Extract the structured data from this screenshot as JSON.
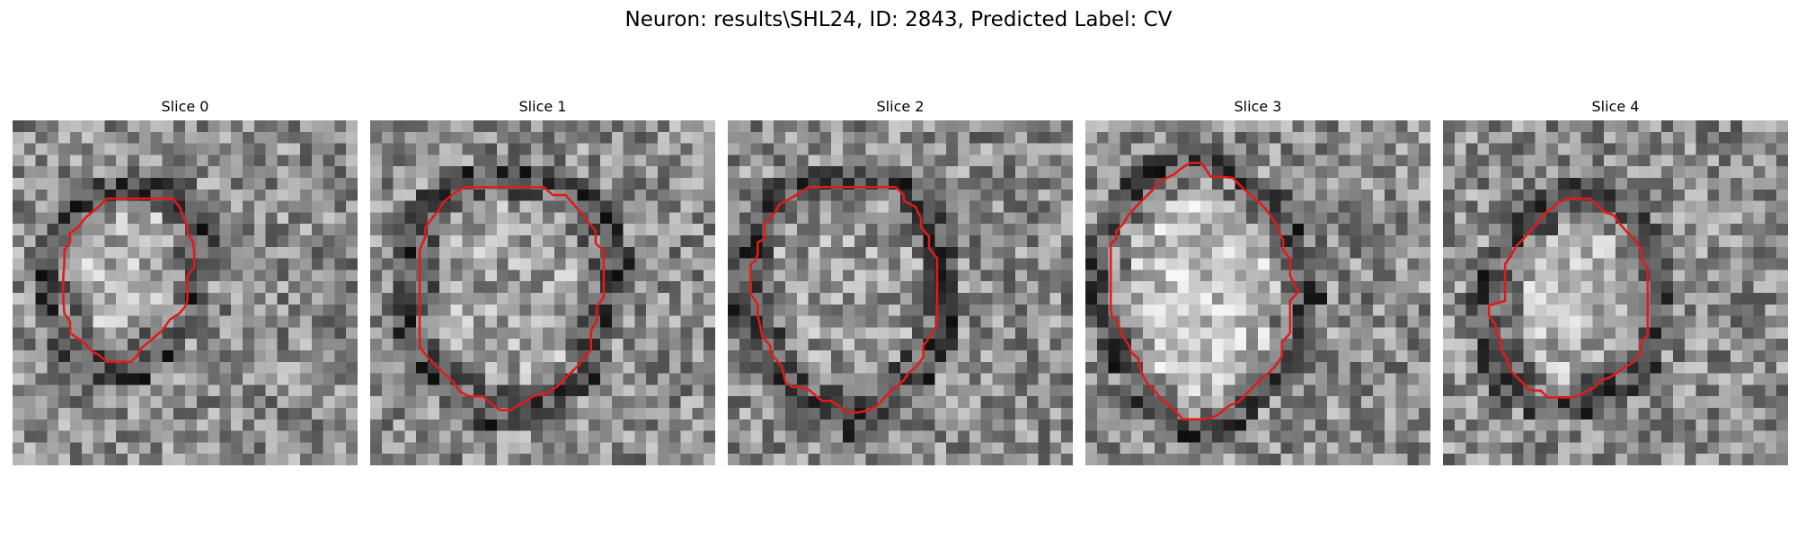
{
  "figure": {
    "title": "Neuron: results\\SHL24, ID: 2843, Predicted Label: CV"
  },
  "contour_color": "#e01b1b",
  "image_grid": {
    "rows": 30,
    "cols": 30,
    "colormap": "gray"
  },
  "slices": [
    {
      "title": "Slice 0",
      "contour": [
        [
          14,
          6.8
        ],
        [
          13.9,
          6.8
        ],
        [
          14.5,
          7.5
        ],
        [
          15.2,
          9.2
        ],
        [
          15.2,
          9.8
        ],
        [
          15.7,
          10.6
        ],
        [
          15.8,
          11.6
        ],
        [
          15.8,
          12.8
        ],
        [
          15.2,
          13.5
        ],
        [
          15.2,
          15.7
        ],
        [
          15.0,
          16.2
        ],
        [
          14.5,
          16.8
        ],
        [
          13.7,
          17.3
        ],
        [
          13.0,
          18.3
        ],
        [
          12.5,
          18.7
        ],
        [
          11.7,
          19.4
        ],
        [
          11.1,
          19.9
        ],
        [
          10.9,
          20.4
        ],
        [
          10.3,
          21.0
        ],
        [
          9.3,
          21.0
        ],
        [
          8.2,
          21.0
        ],
        [
          7.5,
          20.4
        ],
        [
          6.9,
          20.1
        ],
        [
          6.3,
          19.4
        ],
        [
          5.6,
          18.9
        ],
        [
          5.0,
          18.5
        ],
        [
          5.0,
          17.5
        ],
        [
          4.5,
          16.8
        ],
        [
          4.4,
          15.4
        ],
        [
          4.4,
          13.8
        ],
        [
          4.5,
          12.4
        ],
        [
          4.5,
          11.3
        ],
        [
          5.0,
          10.6
        ],
        [
          5.0,
          9.8
        ],
        [
          5.7,
          9.3
        ],
        [
          6.3,
          8.5
        ],
        [
          6.9,
          8.0
        ],
        [
          7.5,
          7.5
        ],
        [
          8.2,
          6.8
        ],
        [
          9.5,
          6.8
        ],
        [
          11.0,
          6.8
        ],
        [
          12.3,
          6.8
        ],
        [
          13.3,
          6.8
        ]
      ],
      "tone": 0.62
    },
    {
      "title": "Slice 1",
      "contour": [
        [
          9.2,
          5.8
        ],
        [
          10.4,
          5.8
        ],
        [
          11.9,
          5.8
        ],
        [
          13.2,
          5.8
        ],
        [
          14.1,
          5.8
        ],
        [
          15.1,
          5.8
        ],
        [
          15.9,
          6.5
        ],
        [
          17.0,
          6.5
        ],
        [
          17.6,
          7.2
        ],
        [
          18.2,
          7.9
        ],
        [
          19.0,
          8.9
        ],
        [
          19.6,
          9.6
        ],
        [
          19.6,
          10.7
        ],
        [
          20.3,
          11.3
        ],
        [
          20.3,
          13.6
        ],
        [
          20.3,
          15.4
        ],
        [
          19.7,
          16.2
        ],
        [
          19.7,
          17.4
        ],
        [
          19.2,
          18.3
        ],
        [
          19.2,
          20.0
        ],
        [
          18.7,
          20.5
        ],
        [
          18.1,
          21.3
        ],
        [
          17.4,
          22.0
        ],
        [
          16.9,
          22.5
        ],
        [
          16.2,
          23.2
        ],
        [
          15.4,
          23.7
        ],
        [
          14.2,
          24.0
        ],
        [
          13.4,
          24.5
        ],
        [
          12.2,
          25.2
        ],
        [
          11.3,
          25.2
        ],
        [
          10.6,
          24.7
        ],
        [
          9.8,
          24.0
        ],
        [
          8.6,
          24.0
        ],
        [
          7.8,
          23.6
        ],
        [
          7.2,
          22.7
        ],
        [
          6.4,
          22.0
        ],
        [
          5.7,
          21.3
        ],
        [
          5.0,
          20.6
        ],
        [
          4.3,
          19.7
        ],
        [
          4.3,
          18.9
        ],
        [
          4.3,
          17.8
        ],
        [
          4.3,
          16.4
        ],
        [
          4.3,
          14.7
        ],
        [
          4.3,
          12.7
        ],
        [
          4.3,
          11.3
        ],
        [
          4.8,
          10.1
        ],
        [
          4.8,
          9.3
        ],
        [
          5.4,
          8.5
        ],
        [
          5.9,
          7.9
        ],
        [
          6.4,
          7.1
        ],
        [
          7.1,
          6.5
        ],
        [
          7.8,
          6.0
        ],
        [
          8.6,
          5.8
        ]
      ],
      "tone": 0.55
    },
    {
      "title": "Slice 2",
      "contour": [
        [
          7.8,
          5.8
        ],
        [
          9.0,
          5.8
        ],
        [
          10.5,
          5.8
        ],
        [
          12.0,
          5.8
        ],
        [
          13.6,
          5.8
        ],
        [
          14.6,
          5.8
        ],
        [
          15.3,
          6.5
        ],
        [
          15.3,
          7.0
        ],
        [
          16.3,
          7.5
        ],
        [
          16.8,
          8.5
        ],
        [
          16.8,
          9.3
        ],
        [
          17.5,
          10.1
        ],
        [
          17.5,
          11.1
        ],
        [
          18.2,
          12.0
        ],
        [
          18.2,
          13.2
        ],
        [
          18.2,
          14.7
        ],
        [
          18.2,
          16.2
        ],
        [
          18.2,
          17.8
        ],
        [
          17.5,
          18.9
        ],
        [
          17.0,
          19.6
        ],
        [
          17.0,
          20.6
        ],
        [
          16.4,
          21.4
        ],
        [
          15.7,
          22.0
        ],
        [
          15.3,
          22.6
        ],
        [
          14.6,
          23.2
        ],
        [
          14.0,
          23.7
        ],
        [
          13.3,
          24.5
        ],
        [
          12.9,
          24.9
        ],
        [
          12.3,
          25.2
        ],
        [
          11.3,
          25.4
        ],
        [
          10.3,
          25.4
        ],
        [
          9.7,
          24.9
        ],
        [
          9.0,
          24.4
        ],
        [
          8.2,
          24.4
        ],
        [
          7.6,
          23.9
        ],
        [
          7.0,
          23.4
        ],
        [
          6.3,
          23.2
        ],
        [
          5.6,
          23.2
        ],
        [
          5.0,
          22.7
        ],
        [
          4.7,
          21.4
        ],
        [
          4.2,
          20.8
        ],
        [
          3.7,
          20.3
        ],
        [
          3.7,
          19.6
        ],
        [
          3.0,
          18.8
        ],
        [
          2.8,
          17.8
        ],
        [
          2.6,
          17.0
        ],
        [
          2.6,
          16.0
        ],
        [
          2.0,
          15.1
        ],
        [
          2.0,
          13.6
        ],
        [
          2.0,
          12.5
        ],
        [
          2.4,
          12.2
        ],
        [
          2.6,
          11.6
        ],
        [
          2.6,
          10.6
        ],
        [
          3.2,
          10.3
        ],
        [
          3.2,
          9.1
        ],
        [
          3.7,
          8.5
        ],
        [
          4.2,
          7.9
        ],
        [
          4.5,
          7.3
        ],
        [
          5.6,
          6.7
        ],
        [
          6.3,
          6.3
        ],
        [
          7.0,
          5.8
        ]
      ],
      "tone": 0.52
    },
    {
      "title": "Slice 3",
      "contour": [
        [
          9.1,
          3.7
        ],
        [
          10.1,
          3.7
        ],
        [
          10.9,
          4.9
        ],
        [
          11.9,
          4.9
        ],
        [
          12.8,
          5.0
        ],
        [
          13.3,
          5.5
        ],
        [
          13.9,
          6.1
        ],
        [
          14.6,
          6.7
        ],
        [
          15.3,
          7.3
        ],
        [
          15.9,
          8.0
        ],
        [
          16.5,
          8.9
        ],
        [
          16.8,
          9.6
        ],
        [
          17.2,
          10.4
        ],
        [
          17.2,
          11.3
        ],
        [
          17.8,
          12.0
        ],
        [
          17.8,
          13.5
        ],
        [
          18.5,
          14.9
        ],
        [
          17.8,
          15.7
        ],
        [
          17.8,
          17.0
        ],
        [
          17.8,
          18.5
        ],
        [
          17.1,
          19.3
        ],
        [
          17.1,
          20.5
        ],
        [
          16.5,
          21.4
        ],
        [
          16.0,
          21.9
        ],
        [
          15.3,
          22.5
        ],
        [
          14.6,
          23.2
        ],
        [
          14.0,
          23.8
        ],
        [
          13.3,
          24.5
        ],
        [
          12.5,
          24.8
        ],
        [
          12.0,
          25.2
        ],
        [
          11.7,
          25.5
        ],
        [
          10.9,
          25.9
        ],
        [
          10.1,
          26.0
        ],
        [
          9.2,
          26.0
        ],
        [
          8.5,
          26.0
        ],
        [
          7.9,
          25.4
        ],
        [
          7.3,
          24.8
        ],
        [
          6.6,
          24.3
        ],
        [
          6.1,
          23.6
        ],
        [
          5.4,
          22.9
        ],
        [
          5.0,
          22.2
        ],
        [
          4.7,
          21.4
        ],
        [
          4.6,
          20.7
        ],
        [
          4.0,
          20.2
        ],
        [
          3.8,
          19.6
        ],
        [
          3.4,
          19.0
        ],
        [
          3.0,
          18.1
        ],
        [
          2.8,
          17.5
        ],
        [
          2.3,
          17.0
        ],
        [
          2.2,
          16.3
        ],
        [
          2.2,
          14.9
        ],
        [
          2.2,
          13.6
        ],
        [
          2.2,
          12.1
        ],
        [
          2.2,
          10.7
        ],
        [
          2.7,
          10.3
        ],
        [
          2.7,
          9.6
        ],
        [
          3.3,
          9.0
        ],
        [
          3.7,
          8.3
        ],
        [
          4.4,
          7.5
        ],
        [
          5.2,
          6.7
        ],
        [
          5.9,
          6.0
        ],
        [
          6.4,
          5.3
        ],
        [
          7.1,
          5.0
        ],
        [
          7.7,
          4.7
        ],
        [
          8.3,
          4.2
        ]
      ],
      "tone": 0.66
    },
    {
      "title": "Slice 4",
      "contour": [
        [
          11.9,
          6.8
        ],
        [
          12.8,
          6.8
        ],
        [
          13.5,
          7.5
        ],
        [
          14.1,
          8.0
        ],
        [
          14.8,
          8.2
        ],
        [
          15.3,
          8.9
        ],
        [
          15.9,
          9.6
        ],
        [
          16.5,
          10.2
        ],
        [
          16.9,
          10.7
        ],
        [
          17.3,
          11.3
        ],
        [
          17.3,
          12.2
        ],
        [
          17.8,
          12.9
        ],
        [
          17.8,
          14.2
        ],
        [
          17.8,
          15.7
        ],
        [
          17.8,
          17.2
        ],
        [
          17.8,
          18.7
        ],
        [
          17.2,
          19.3
        ],
        [
          17.2,
          20.3
        ],
        [
          16.6,
          21.0
        ],
        [
          16.1,
          21.3
        ],
        [
          15.6,
          21.6
        ],
        [
          15.1,
          22.0
        ],
        [
          14.4,
          22.4
        ],
        [
          13.7,
          22.6
        ],
        [
          13.2,
          23.2
        ],
        [
          12.6,
          23.5
        ],
        [
          11.9,
          23.9
        ],
        [
          11.2,
          24.1
        ],
        [
          10.5,
          24.1
        ],
        [
          9.8,
          24.1
        ],
        [
          9.1,
          24.1
        ],
        [
          8.5,
          23.5
        ],
        [
          7.9,
          23.5
        ],
        [
          7.3,
          23.3
        ],
        [
          6.9,
          22.8
        ],
        [
          6.5,
          22.4
        ],
        [
          6.0,
          21.9
        ],
        [
          5.7,
          21.3
        ],
        [
          5.5,
          20.6
        ],
        [
          5.0,
          19.9
        ],
        [
          5.0,
          19.0
        ],
        [
          4.6,
          18.5
        ],
        [
          4.6,
          17.8
        ],
        [
          4.0,
          17.0
        ],
        [
          4.0,
          16.1
        ],
        [
          5.4,
          15.7
        ],
        [
          5.4,
          15.1
        ],
        [
          5.4,
          14.2
        ],
        [
          5.4,
          13.5
        ],
        [
          5.4,
          12.5
        ],
        [
          6.0,
          11.6
        ],
        [
          6.4,
          10.9
        ],
        [
          7.0,
          10.3
        ],
        [
          7.6,
          9.6
        ],
        [
          8.2,
          9.0
        ],
        [
          8.7,
          8.2
        ],
        [
          9.4,
          7.7
        ],
        [
          10.0,
          7.2
        ],
        [
          10.8,
          6.8
        ]
      ],
      "tone": 0.6
    }
  ]
}
